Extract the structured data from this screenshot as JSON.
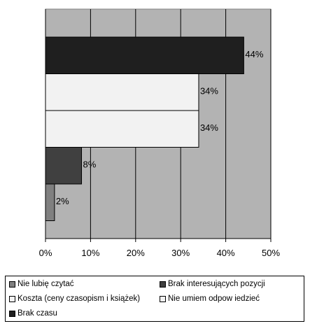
{
  "chart_data": {
    "type": "bar",
    "orientation": "horizontal",
    "categories": [
      "Brak czasu",
      "Nie umiem odpow iedzieć",
      "Koszta (ceny czasopism i książek)",
      "Brak interesujących pozycji",
      "Nie lubię czytać"
    ],
    "values": [
      44,
      34,
      34,
      8,
      2
    ],
    "data_labels": [
      "44%",
      "34%",
      "34%",
      "8%",
      "2%"
    ],
    "colors": [
      "#1f1f1f",
      "#f2f2f2",
      "#f2f2f2",
      "#404040",
      "#808080"
    ],
    "xlim": [
      0,
      50
    ],
    "x_ticks": [
      0,
      10,
      20,
      30,
      40,
      50
    ],
    "x_tick_labels": [
      "0%",
      "10%",
      "20%",
      "30%",
      "40%",
      "50%"
    ],
    "plot_background": "#b3b3b3",
    "grid": true,
    "legend_position": "bottom",
    "legend": [
      {
        "label": "Nie lubię czytać",
        "color": "#808080"
      },
      {
        "label": "Brak interesujących pozycji",
        "color": "#404040"
      },
      {
        "label": "Koszta (ceny czasopism i książek)",
        "color": "#f2f2f2"
      },
      {
        "label": "Nie umiem odpow iedzieć",
        "color": "#f2f2f2"
      },
      {
        "label": "Brak czasu",
        "color": "#1f1f1f"
      }
    ]
  }
}
